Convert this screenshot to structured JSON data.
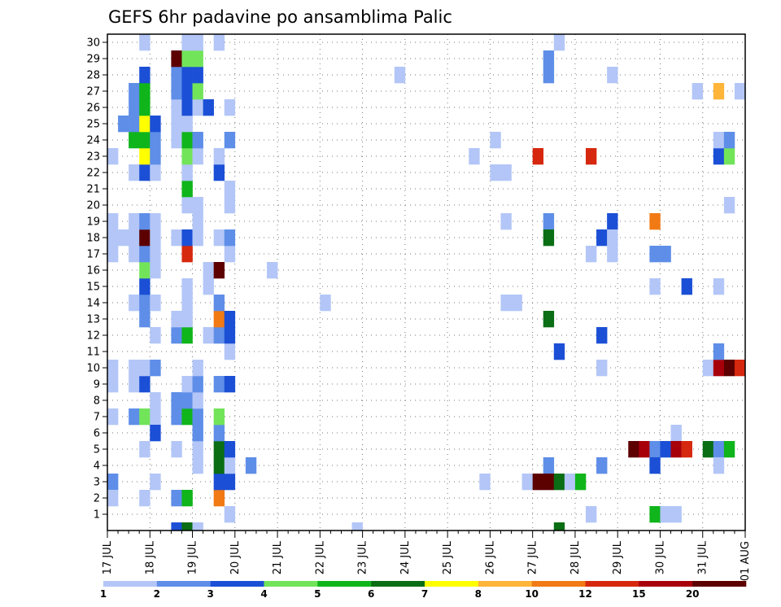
{
  "chart_data": {
    "type": "heatmap",
    "title": "GEFS 6hr padavine po ansamblima Palic",
    "xlabel": "",
    "ylabel": "",
    "x_tick_labels": [
      "17 JUL",
      "18 JUL",
      "19 JUL",
      "20 JUL",
      "21 JUL",
      "22 JUL",
      "23 JUL",
      "24 JUL",
      "25 JUL",
      "26 JUL",
      "27 JUL",
      "28 JUL",
      "29 JUL",
      "30 JUL",
      "31 JUL",
      "01 AUG"
    ],
    "y_tick_labels": [
      "1",
      "2",
      "3",
      "4",
      "5",
      "6",
      "7",
      "8",
      "9",
      "10",
      "11",
      "12",
      "13",
      "14",
      "15",
      "16",
      "17",
      "18",
      "19",
      "20",
      "21",
      "22",
      "23",
      "24",
      "25",
      "26",
      "27",
      "28",
      "29",
      "30"
    ],
    "xlim_steps": [
      0,
      60
    ],
    "ylim_members": [
      0,
      30
    ],
    "grid": true,
    "legend": {
      "placement": "bottom",
      "thresholds": [
        "1",
        "2",
        "3",
        "4",
        "5",
        "6",
        "7",
        "8",
        "10",
        "12",
        "15",
        "20"
      ],
      "colors": [
        "#b3c6f7",
        "#5e8ee8",
        "#1b4fd6",
        "#72e45a",
        "#0fb51b",
        "#0a6e14",
        "#ffff00",
        "#ffb43a",
        "#f27a14",
        "#d6280e",
        "#a8000a",
        "#5c0000"
      ]
    },
    "cells": [
      [
        0,
        3,
        1
      ],
      [
        0,
        2,
        0
      ],
      [
        0,
        7,
        0
      ],
      [
        0,
        9,
        0
      ],
      [
        0,
        10,
        0
      ],
      [
        0,
        17,
        0
      ],
      [
        0,
        18,
        0
      ],
      [
        0,
        19,
        0
      ],
      [
        0,
        23,
        0
      ],
      [
        1,
        18,
        0
      ],
      [
        1,
        25,
        1
      ],
      [
        2,
        7,
        1
      ],
      [
        2,
        9,
        0
      ],
      [
        2,
        10,
        0
      ],
      [
        2,
        14,
        0
      ],
      [
        2,
        17,
        0
      ],
      [
        2,
        18,
        0
      ],
      [
        2,
        19,
        0
      ],
      [
        2,
        22,
        0
      ],
      [
        2,
        24,
        4
      ],
      [
        2,
        25,
        1
      ],
      [
        2,
        26,
        1
      ],
      [
        2,
        27,
        1
      ],
      [
        3,
        2,
        0
      ],
      [
        3,
        5,
        0
      ],
      [
        3,
        7,
        3
      ],
      [
        3,
        9,
        2
      ],
      [
        3,
        10,
        0
      ],
      [
        3,
        13,
        1
      ],
      [
        3,
        14,
        1
      ],
      [
        3,
        15,
        2
      ],
      [
        3,
        16,
        3
      ],
      [
        3,
        17,
        1
      ],
      [
        3,
        18,
        11
      ],
      [
        3,
        19,
        1
      ],
      [
        3,
        22,
        2
      ],
      [
        3,
        23,
        6
      ],
      [
        3,
        24,
        4
      ],
      [
        3,
        25,
        6
      ],
      [
        3,
        26,
        4
      ],
      [
        3,
        27,
        4
      ],
      [
        3,
        28,
        2
      ],
      [
        3,
        30,
        0
      ],
      [
        4,
        3,
        0
      ],
      [
        4,
        7,
        0
      ],
      [
        4,
        8,
        0
      ],
      [
        4,
        10,
        1
      ],
      [
        4,
        12,
        0
      ],
      [
        4,
        14,
        0
      ],
      [
        4,
        16,
        0
      ],
      [
        4,
        17,
        0
      ],
      [
        4,
        18,
        0
      ],
      [
        4,
        19,
        0
      ],
      [
        4,
        22,
        0
      ],
      [
        4,
        23,
        1
      ],
      [
        4,
        24,
        1
      ],
      [
        4,
        25,
        2
      ],
      [
        4,
        6,
        2
      ],
      [
        6,
        0,
        2
      ],
      [
        6,
        2,
        1
      ],
      [
        6,
        5,
        0
      ],
      [
        6,
        7,
        1
      ],
      [
        6,
        8,
        1
      ],
      [
        6,
        12,
        1
      ],
      [
        6,
        13,
        0
      ],
      [
        6,
        18,
        0
      ],
      [
        6,
        24,
        0
      ],
      [
        6,
        25,
        0
      ],
      [
        6,
        26,
        0
      ],
      [
        6,
        27,
        1
      ],
      [
        6,
        28,
        1
      ],
      [
        6,
        29,
        11
      ],
      [
        7,
        0,
        5
      ],
      [
        7,
        2,
        4
      ],
      [
        7,
        7,
        4
      ],
      [
        7,
        8,
        1
      ],
      [
        7,
        9,
        0
      ],
      [
        7,
        12,
        4
      ],
      [
        7,
        13,
        0
      ],
      [
        7,
        14,
        0
      ],
      [
        7,
        15,
        0
      ],
      [
        7,
        17,
        9
      ],
      [
        7,
        18,
        2
      ],
      [
        7,
        20,
        0
      ],
      [
        7,
        21,
        4
      ],
      [
        7,
        22,
        0
      ],
      [
        7,
        23,
        3
      ],
      [
        7,
        24,
        4
      ],
      [
        7,
        25,
        0
      ],
      [
        7,
        26,
        2
      ],
      [
        7,
        27,
        2
      ],
      [
        7,
        28,
        2
      ],
      [
        7,
        29,
        3
      ],
      [
        7,
        30,
        0
      ],
      [
        8,
        0,
        0
      ],
      [
        8,
        4,
        0
      ],
      [
        8,
        5,
        0
      ],
      [
        8,
        6,
        1
      ],
      [
        8,
        7,
        1
      ],
      [
        8,
        8,
        0
      ],
      [
        8,
        9,
        1
      ],
      [
        8,
        10,
        0
      ],
      [
        8,
        18,
        0
      ],
      [
        8,
        19,
        0
      ],
      [
        8,
        20,
        0
      ],
      [
        8,
        23,
        0
      ],
      [
        8,
        24,
        1
      ],
      [
        8,
        26,
        0
      ],
      [
        8,
        27,
        3
      ],
      [
        8,
        28,
        2
      ],
      [
        8,
        29,
        3
      ],
      [
        8,
        30,
        0
      ],
      [
        9,
        15,
        0
      ],
      [
        9,
        16,
        0
      ],
      [
        9,
        12,
        0
      ],
      [
        9,
        26,
        2
      ],
      [
        10,
        2,
        8
      ],
      [
        10,
        3,
        2
      ],
      [
        10,
        4,
        5
      ],
      [
        10,
        5,
        5
      ],
      [
        10,
        6,
        1
      ],
      [
        10,
        7,
        3
      ],
      [
        10,
        9,
        1
      ],
      [
        10,
        12,
        1
      ],
      [
        10,
        13,
        8
      ],
      [
        10,
        14,
        1
      ],
      [
        10,
        16,
        11
      ],
      [
        10,
        18,
        0
      ],
      [
        10,
        22,
        2
      ],
      [
        10,
        23,
        0
      ],
      [
        10,
        30,
        0
      ],
      [
        11,
        1,
        0
      ],
      [
        11,
        3,
        2
      ],
      [
        11,
        4,
        0
      ],
      [
        11,
        5,
        2
      ],
      [
        11,
        9,
        2
      ],
      [
        11,
        11,
        0
      ],
      [
        11,
        12,
        2
      ],
      [
        11,
        13,
        2
      ],
      [
        11,
        17,
        0
      ],
      [
        11,
        18,
        1
      ],
      [
        11,
        20,
        0
      ],
      [
        11,
        21,
        0
      ],
      [
        11,
        24,
        1
      ],
      [
        11,
        26,
        0
      ],
      [
        13,
        4,
        1
      ],
      [
        15,
        16,
        0
      ],
      [
        20,
        14,
        0
      ],
      [
        23,
        0,
        0
      ],
      [
        27,
        28,
        0
      ],
      [
        34,
        23,
        0
      ],
      [
        35,
        3,
        0
      ],
      [
        36,
        22,
        0
      ],
      [
        36,
        24,
        0
      ],
      [
        37,
        14,
        0
      ],
      [
        37,
        19,
        0
      ],
      [
        37,
        22,
        0
      ],
      [
        38,
        14,
        0
      ],
      [
        39,
        3,
        0
      ],
      [
        40,
        3,
        11
      ],
      [
        40,
        23,
        9
      ],
      [
        41,
        19,
        1
      ],
      [
        41,
        18,
        5
      ],
      [
        41,
        13,
        5
      ],
      [
        41,
        4,
        1
      ],
      [
        41,
        28,
        1
      ],
      [
        41,
        29,
        1
      ],
      [
        41,
        3,
        11
      ],
      [
        42,
        3,
        5
      ],
      [
        42,
        11,
        2
      ],
      [
        42,
        0,
        5
      ],
      [
        42,
        30,
        0
      ],
      [
        43,
        3,
        0
      ],
      [
        44,
        3,
        4
      ],
      [
        45,
        1,
        0
      ],
      [
        45,
        17,
        0
      ],
      [
        45,
        23,
        9
      ],
      [
        46,
        10,
        0
      ],
      [
        46,
        4,
        1
      ],
      [
        46,
        18,
        2
      ],
      [
        46,
        12,
        2
      ],
      [
        47,
        17,
        0
      ],
      [
        47,
        19,
        2
      ],
      [
        47,
        28,
        0
      ],
      [
        47,
        18,
        0
      ],
      [
        49,
        5,
        11
      ],
      [
        50,
        5,
        10
      ],
      [
        51,
        5,
        1
      ],
      [
        51,
        1,
        4
      ],
      [
        51,
        4,
        2
      ],
      [
        51,
        15,
        0
      ],
      [
        51,
        17,
        1
      ],
      [
        51,
        19,
        8
      ],
      [
        52,
        1,
        0
      ],
      [
        52,
        17,
        1
      ],
      [
        52,
        5,
        2
      ],
      [
        53,
        1,
        0
      ],
      [
        53,
        6,
        0
      ],
      [
        53,
        5,
        10
      ],
      [
        54,
        5,
        9
      ],
      [
        54,
        15,
        2
      ],
      [
        55,
        27,
        0
      ],
      [
        56,
        5,
        5
      ],
      [
        56,
        10,
        0
      ],
      [
        57,
        5,
        1
      ],
      [
        57,
        4,
        0
      ],
      [
        57,
        10,
        10
      ],
      [
        57,
        11,
        1
      ],
      [
        57,
        15,
        0
      ],
      [
        57,
        23,
        2
      ],
      [
        57,
        24,
        0
      ],
      [
        57,
        27,
        7
      ],
      [
        58,
        5,
        4
      ],
      [
        58,
        10,
        11
      ],
      [
        58,
        20,
        0
      ],
      [
        58,
        23,
        3
      ],
      [
        58,
        24,
        1
      ],
      [
        59,
        10,
        9
      ],
      [
        59,
        27,
        0
      ],
      [
        60,
        10,
        3
      ],
      [
        60,
        14,
        1
      ],
      [
        61,
        6,
        0
      ],
      [
        61,
        9,
        0
      ],
      [
        61,
        11,
        0
      ],
      [
        61,
        24,
        4
      ],
      [
        61,
        28,
        1
      ],
      [
        62,
        2,
        0
      ],
      [
        62,
        6,
        0
      ],
      [
        62,
        28,
        1
      ],
      [
        63,
        2,
        6
      ],
      [
        63,
        28,
        3
      ],
      [
        63,
        11,
        0
      ],
      [
        64,
        3,
        0
      ],
      [
        64,
        11,
        1
      ],
      [
        64,
        4,
        1
      ],
      [
        65,
        2,
        0
      ],
      [
        65,
        4,
        11
      ],
      [
        65,
        6,
        1
      ],
      [
        65,
        10,
        0
      ],
      [
        65,
        15,
        2
      ],
      [
        65,
        11,
        1
      ]
    ]
  }
}
